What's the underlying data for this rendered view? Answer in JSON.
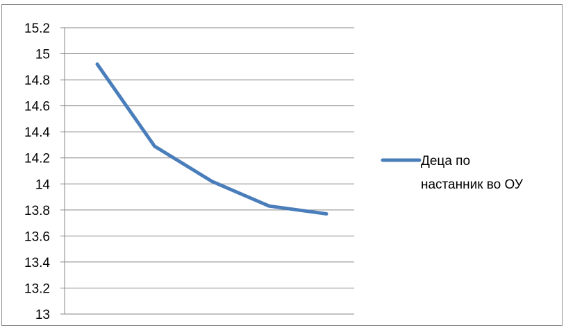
{
  "chart_data": {
    "type": "line",
    "title": "",
    "xlabel": "",
    "ylabel": "",
    "ylim": [
      13,
      15.2
    ],
    "yticks": [
      "15.2",
      "15",
      "14.8",
      "14.6",
      "14.4",
      "14.2",
      "14",
      "13.8",
      "13.6",
      "13.4",
      "13.2",
      "13"
    ],
    "x_tick_labels": [],
    "grid": true,
    "legend_position": "right",
    "series": [
      {
        "name_lines": [
          "Деца по",
          "настанник во ОУ"
        ],
        "color": "#4a7ebb",
        "x": [
          1,
          2,
          3,
          4,
          5
        ],
        "values": [
          14.92,
          14.29,
          14.02,
          13.83,
          13.77
        ]
      }
    ]
  }
}
